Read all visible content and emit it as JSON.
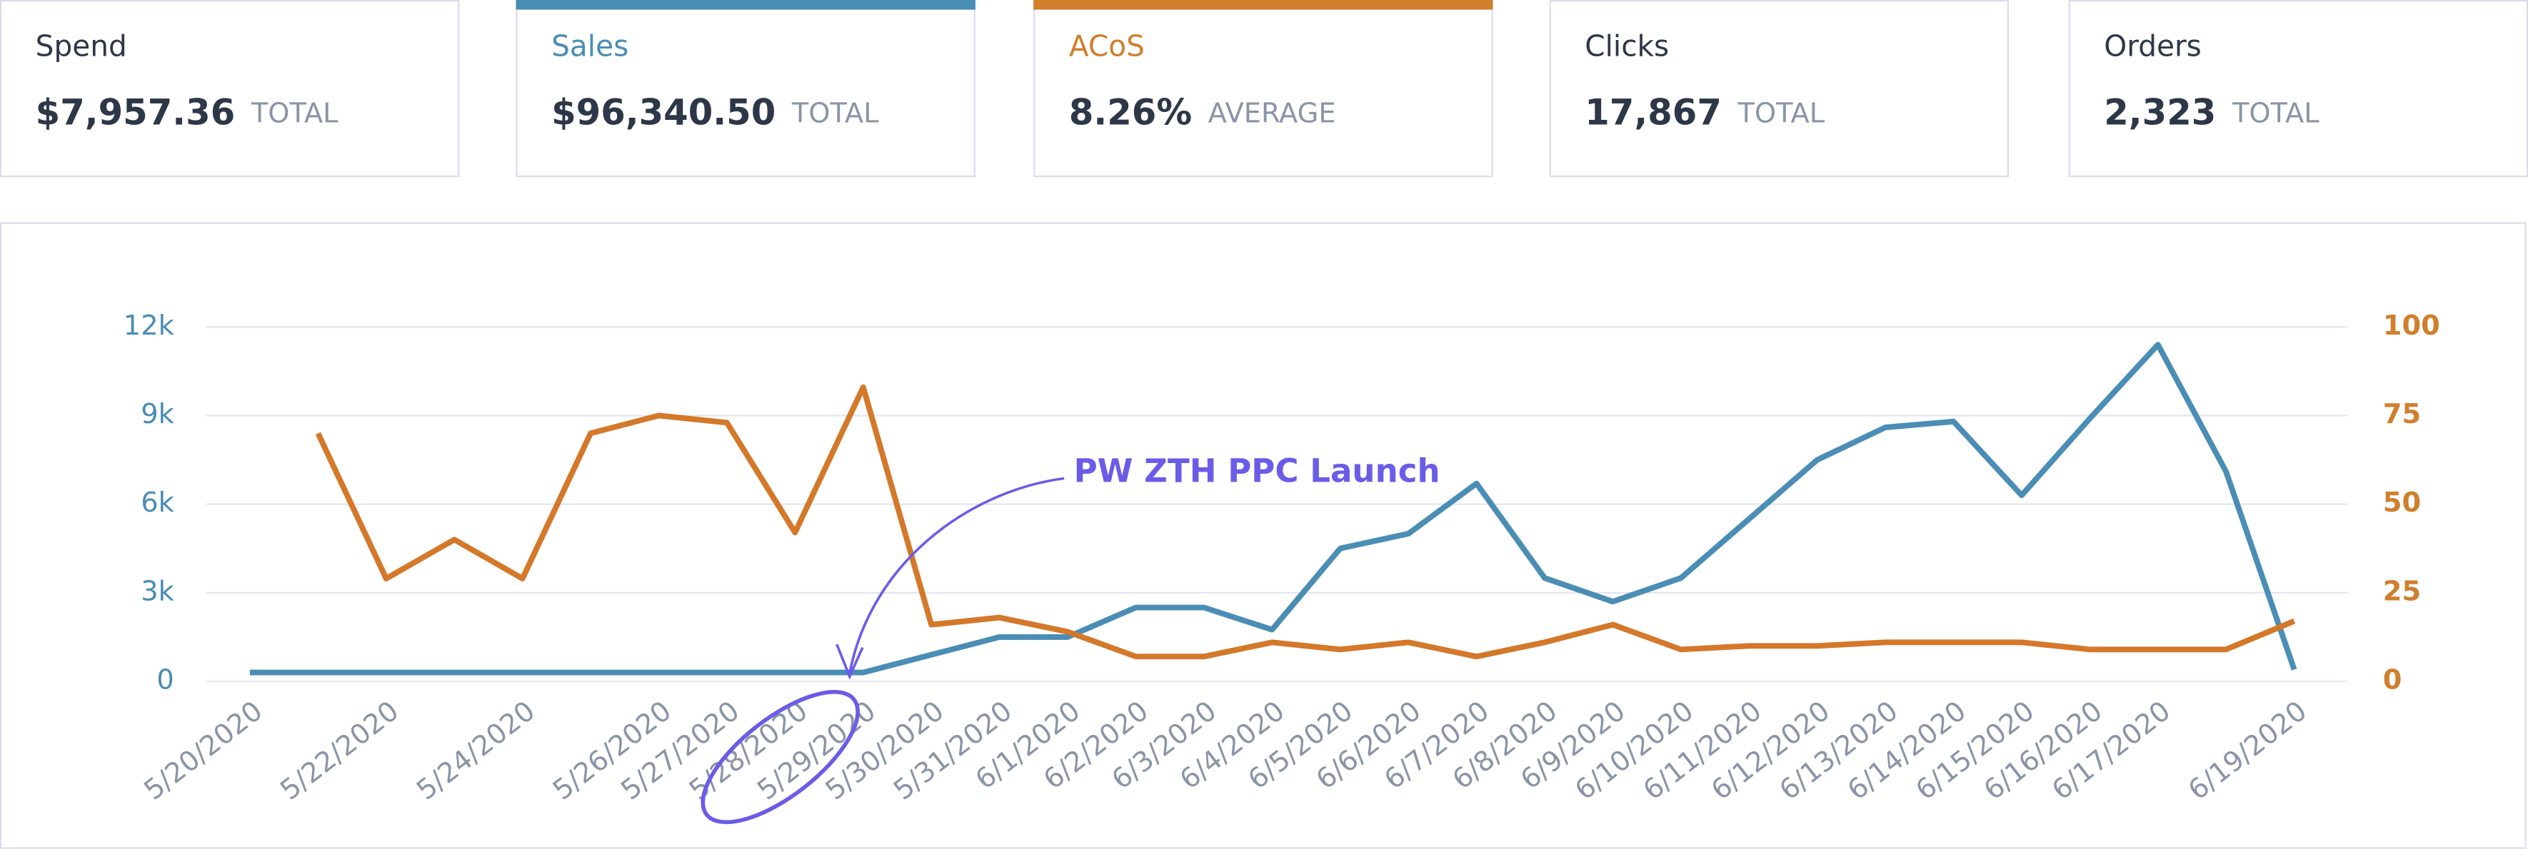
{
  "cards": [
    {
      "label": "Spend",
      "value": "$7,957.36",
      "unit": "TOTAL"
    },
    {
      "label": "Sales",
      "value": "$96,340.50",
      "unit": "TOTAL",
      "color": "#4a8db5"
    },
    {
      "label": "ACoS",
      "value": "8.26%",
      "unit": "AVERAGE",
      "color": "#d07f2d"
    },
    {
      "label": "Clicks",
      "value": "17,867",
      "unit": "TOTAL"
    },
    {
      "label": "Orders",
      "value": "2,323",
      "unit": "TOTAL"
    }
  ],
  "chart_data": {
    "type": "line",
    "categories": [
      "5/20/2020",
      null,
      "5/22/2020",
      null,
      "5/24/2020",
      null,
      "5/26/2020",
      "5/27/2020",
      "5/28/2020",
      "5/29/2020",
      "5/30/2020",
      "5/31/2020",
      "6/1/2020",
      "6/2/2020",
      "6/3/2020",
      "6/4/2020",
      "6/5/2020",
      "6/6/2020",
      "6/7/2020",
      "6/8/2020",
      "6/9/2020",
      "6/10/2020",
      "6/11/2020",
      "6/12/2020",
      "6/13/2020",
      "6/14/2020",
      "6/15/2020",
      "6/16/2020",
      "6/17/2020",
      null,
      "6/19/2020"
    ],
    "series": [
      {
        "color": "#4a8db5",
        "values": [
          300,
          300,
          300,
          300,
          300,
          300,
          300,
          300,
          300,
          300,
          900,
          1500,
          1500,
          2500,
          2500,
          1750,
          4500,
          5000,
          6700,
          3500,
          2700,
          3500,
          5500,
          7500,
          8600,
          8800,
          6300,
          8900,
          11400,
          7100,
          400
        ]
      },
      {
        "color": "#d4782a",
        "axis": "y2",
        "values": [
          null,
          70,
          29,
          40,
          29,
          70,
          75,
          73,
          42,
          83,
          16,
          18,
          14,
          7,
          7,
          11,
          9,
          11,
          7,
          11,
          16,
          9,
          10,
          10,
          11,
          11,
          11,
          9,
          9,
          9,
          17
        ]
      }
    ],
    "ylim": [
      0,
      12000
    ],
    "yticks": [
      0,
      {
        "value": 3000,
        "label": "3k"
      },
      {
        "value": 6000,
        "label": "6k"
      },
      {
        "value": 9000,
        "label": "9k"
      },
      {
        "value": 12000,
        "label": "12k"
      }
    ],
    "y2lim": [
      0,
      100
    ],
    "y2ticks": [
      0,
      25,
      50,
      75,
      100
    ],
    "grid": true,
    "annotation": "PW ZTH PPC Launch"
  }
}
